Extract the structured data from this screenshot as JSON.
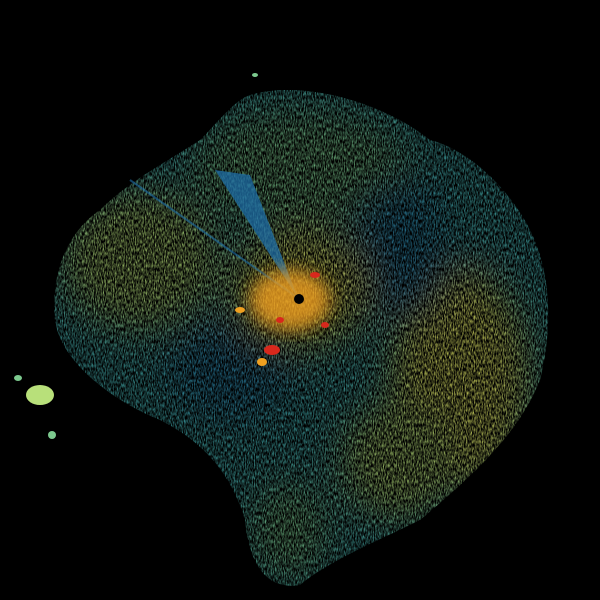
{
  "image": {
    "kind": "radar-scan",
    "background": "#000000",
    "palette": {
      "deep_blue": "#1f6fa8",
      "blue": "#2e8fb5",
      "teal": "#45b0b0",
      "green": "#7cc98e",
      "light_green": "#b8e07a",
      "yellow": "#e8ee6a",
      "orange": "#f0a020",
      "red": "#d8281c",
      "center": "#000000"
    },
    "features": [
      "echo-field",
      "center-site-marker",
      "beam-blockage-wedge",
      "high-intensity-core"
    ]
  }
}
